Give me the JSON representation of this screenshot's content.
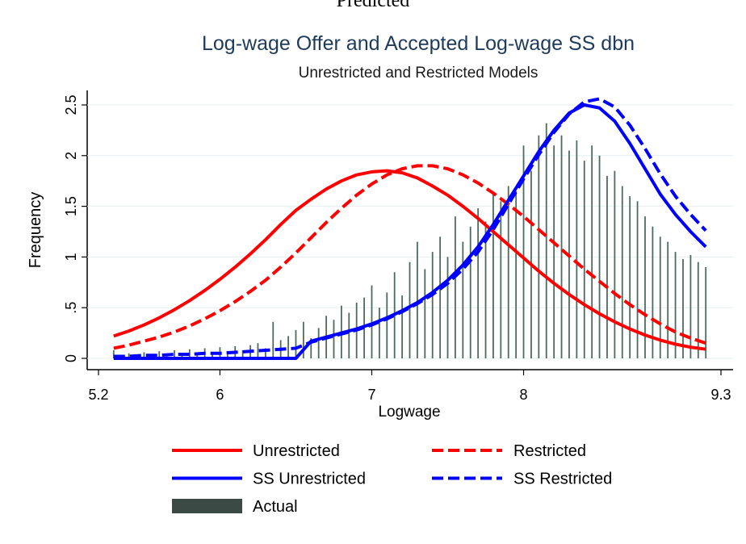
{
  "header": "Predicted",
  "chart_data": {
    "type": "line",
    "title": "Log-wage Offer and Accepted Log-wage SS dbn",
    "subtitle": "Unrestricted and Restricted Models",
    "x_label": "Logwage",
    "y_label": "Frequency",
    "xlim": [
      5.2,
      9.3
    ],
    "xticks": [
      5.2,
      6,
      7,
      8,
      9.3
    ],
    "ylim": [
      0,
      2.5
    ],
    "yticks": [
      0,
      {
        "value": 0.5,
        "label": ".5"
      },
      1,
      1.5,
      2,
      2.5
    ],
    "grid": true,
    "series": [
      {
        "name": "Unrestricted",
        "type": "line",
        "dash": false,
        "color": "#ff0000",
        "x": [
          5.3,
          5.4,
          5.5,
          5.6,
          5.7,
          5.8,
          5.9,
          6.0,
          6.1,
          6.2,
          6.3,
          6.4,
          6.5,
          6.6,
          6.7,
          6.8,
          6.9,
          7.0,
          7.1,
          7.2,
          7.3,
          7.4,
          7.5,
          7.6,
          7.7,
          7.8,
          7.9,
          8.0,
          8.1,
          8.2,
          8.3,
          8.4,
          8.5,
          8.6,
          8.7,
          8.8,
          8.9,
          9.0,
          9.1,
          9.2
        ],
        "values": [
          0.22,
          0.27,
          0.33,
          0.4,
          0.48,
          0.57,
          0.67,
          0.78,
          0.9,
          1.03,
          1.17,
          1.32,
          1.46,
          1.57,
          1.67,
          1.75,
          1.81,
          1.84,
          1.85,
          1.83,
          1.78,
          1.7,
          1.61,
          1.5,
          1.38,
          1.25,
          1.12,
          0.99,
          0.86,
          0.74,
          0.63,
          0.53,
          0.44,
          0.36,
          0.29,
          0.23,
          0.18,
          0.14,
          0.11,
          0.09
        ]
      },
      {
        "name": "Restricted",
        "type": "line",
        "dash": true,
        "color": "#ff0000",
        "x": [
          5.3,
          5.4,
          5.5,
          5.6,
          5.7,
          5.8,
          5.9,
          6.0,
          6.1,
          6.2,
          6.3,
          6.4,
          6.5,
          6.6,
          6.7,
          6.8,
          6.9,
          7.0,
          7.1,
          7.2,
          7.3,
          7.4,
          7.5,
          7.6,
          7.7,
          7.8,
          7.9,
          8.0,
          8.1,
          8.2,
          8.3,
          8.4,
          8.5,
          8.6,
          8.7,
          8.8,
          8.9,
          9.0,
          9.1,
          9.2
        ],
        "values": [
          0.1,
          0.13,
          0.17,
          0.21,
          0.26,
          0.32,
          0.39,
          0.47,
          0.56,
          0.66,
          0.77,
          0.9,
          1.04,
          1.19,
          1.34,
          1.48,
          1.61,
          1.72,
          1.81,
          1.87,
          1.9,
          1.9,
          1.87,
          1.81,
          1.73,
          1.63,
          1.52,
          1.4,
          1.27,
          1.14,
          1.01,
          0.88,
          0.76,
          0.64,
          0.53,
          0.43,
          0.34,
          0.26,
          0.2,
          0.15
        ]
      },
      {
        "name": "SS Unrestricted",
        "type": "line",
        "dash": false,
        "color": "#0000ff",
        "x": [
          5.3,
          5.4,
          5.5,
          5.6,
          5.7,
          5.8,
          5.9,
          6.0,
          6.1,
          6.2,
          6.3,
          6.4,
          6.5,
          6.6,
          6.7,
          6.8,
          6.9,
          7.0,
          7.1,
          7.2,
          7.3,
          7.4,
          7.5,
          7.6,
          7.7,
          7.8,
          7.9,
          8.0,
          8.1,
          8.2,
          8.3,
          8.4,
          8.5,
          8.6,
          8.7,
          8.8,
          8.9,
          9.0,
          9.1,
          9.2
        ],
        "values": [
          0,
          0,
          0,
          0,
          0,
          0,
          0,
          0,
          0,
          0,
          0,
          0,
          0,
          0.17,
          0.21,
          0.25,
          0.29,
          0.34,
          0.4,
          0.47,
          0.55,
          0.65,
          0.77,
          0.92,
          1.1,
          1.32,
          1.56,
          1.8,
          2.04,
          2.25,
          2.42,
          2.5,
          2.47,
          2.34,
          2.12,
          1.87,
          1.62,
          1.42,
          1.25,
          1.1
        ]
      },
      {
        "name": "SS Restricted",
        "type": "line",
        "dash": true,
        "color": "#0000ff",
        "x": [
          5.3,
          5.4,
          5.5,
          5.6,
          5.7,
          5.8,
          5.9,
          6.0,
          6.1,
          6.2,
          6.3,
          6.4,
          6.5,
          6.6,
          6.7,
          6.8,
          6.9,
          7.0,
          7.1,
          7.2,
          7.3,
          7.4,
          7.5,
          7.6,
          7.7,
          7.8,
          7.9,
          8.0,
          8.1,
          8.2,
          8.3,
          8.4,
          8.5,
          8.6,
          8.7,
          8.8,
          8.9,
          9.0,
          9.1,
          9.2
        ],
        "values": [
          0.02,
          0.02,
          0.03,
          0.03,
          0.04,
          0.04,
          0.05,
          0.05,
          0.06,
          0.07,
          0.08,
          0.09,
          0.1,
          0.16,
          0.2,
          0.24,
          0.28,
          0.33,
          0.39,
          0.46,
          0.54,
          0.63,
          0.74,
          0.88,
          1.05,
          1.27,
          1.52,
          1.77,
          2.01,
          2.23,
          2.41,
          2.53,
          2.56,
          2.48,
          2.3,
          2.07,
          1.82,
          1.6,
          1.42,
          1.26
        ]
      },
      {
        "name": "Actual",
        "type": "bar",
        "color": "#4d6b5e",
        "x": [
          5.3,
          5.35,
          5.4,
          5.45,
          5.5,
          5.55,
          5.6,
          5.65,
          5.7,
          5.75,
          5.8,
          5.85,
          5.9,
          5.95,
          6.0,
          6.05,
          6.1,
          6.15,
          6.2,
          6.25,
          6.3,
          6.35,
          6.4,
          6.45,
          6.5,
          6.55,
          6.6,
          6.65,
          6.7,
          6.75,
          6.8,
          6.85,
          6.9,
          6.95,
          7.0,
          7.05,
          7.1,
          7.15,
          7.2,
          7.25,
          7.3,
          7.35,
          7.4,
          7.45,
          7.5,
          7.55,
          7.6,
          7.65,
          7.7,
          7.75,
          7.8,
          7.85,
          7.9,
          7.95,
          8.0,
          8.05,
          8.1,
          8.15,
          8.2,
          8.25,
          8.3,
          8.35,
          8.4,
          8.45,
          8.5,
          8.55,
          8.6,
          8.65,
          8.7,
          8.75,
          8.8,
          8.85,
          8.9,
          8.95,
          9.0,
          9.05,
          9.1,
          9.15,
          9.2
        ],
        "values": [
          0.08,
          0.02,
          0.05,
          0.03,
          0.06,
          0.04,
          0.07,
          0.03,
          0.08,
          0.05,
          0.09,
          0.04,
          0.1,
          0.06,
          0.11,
          0.07,
          0.12,
          0.08,
          0.13,
          0.15,
          0.1,
          0.36,
          0.18,
          0.22,
          0.28,
          0.36,
          0.2,
          0.3,
          0.42,
          0.38,
          0.52,
          0.45,
          0.55,
          0.6,
          0.72,
          0.5,
          0.65,
          0.85,
          0.62,
          0.95,
          1.15,
          0.88,
          1.05,
          1.2,
          1.0,
          1.4,
          1.15,
          1.3,
          1.48,
          1.35,
          1.62,
          1.55,
          1.7,
          1.65,
          2.1,
          1.85,
          2.2,
          2.32,
          2.1,
          2.2,
          2.05,
          2.15,
          1.95,
          2.1,
          2.0,
          1.8,
          1.85,
          1.7,
          1.6,
          1.55,
          1.4,
          1.3,
          1.2,
          1.15,
          1.05,
          0.98,
          1.02,
          0.95,
          0.9
        ]
      }
    ]
  }
}
